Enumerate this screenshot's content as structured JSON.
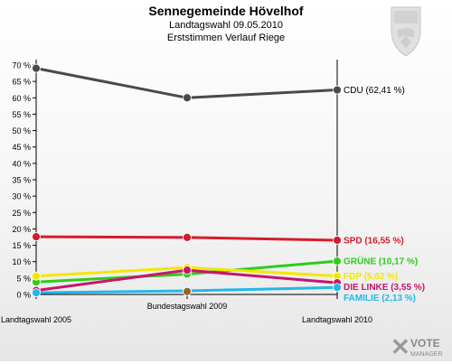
{
  "header": {
    "title": "Sennegemeinde Hövelhof",
    "subtitle1": "Landtagswahl 09.05.2010",
    "subtitle2": "Erststimmen Verlauf Riege"
  },
  "brand": {
    "line1": "VOTE",
    "line2": "MANAGER"
  },
  "chart_data": {
    "type": "line",
    "categories": [
      "Landtagswahl 2005",
      "Bundestagswahl 2009",
      "Landtagswahl 2010"
    ],
    "ylim": [
      0,
      70
    ],
    "yticks": [
      "0 %",
      "5 %",
      "10 %",
      "15 %",
      "20 %",
      "25 %",
      "30 %",
      "35 %",
      "40 %",
      "45 %",
      "50 %",
      "55 %",
      "60 %",
      "65 %",
      "70 %"
    ],
    "ytick_values": [
      0,
      5,
      10,
      15,
      20,
      25,
      30,
      35,
      40,
      45,
      50,
      55,
      60,
      65,
      70
    ],
    "grid": false,
    "series": [
      {
        "name": "CDU",
        "label": "CDU (62,41 %)",
        "color": "#4a4a4a",
        "label_color": "#000000",
        "values": [
          69.0,
          60.0,
          62.41
        ]
      },
      {
        "name": "SPD",
        "label": "SPD (16,55 %)",
        "color": "#d61c2b",
        "label_color": "#d61c2b",
        "values": [
          17.6,
          17.4,
          16.55
        ]
      },
      {
        "name": "GRÜNE",
        "label": "GRÜNE (10,17 %)",
        "color": "#2ecc1a",
        "label_color": "#2ecc1a",
        "values": [
          3.8,
          6.2,
          10.17
        ]
      },
      {
        "name": "FDP",
        "label": "FDP (5,62 %)",
        "color": "#f5e600",
        "label_color": "#f5e600",
        "values": [
          5.6,
          8.2,
          5.62
        ]
      },
      {
        "name": "DIE LINKE",
        "label": "DIE LINKE (3,55 %)",
        "color": "#c8156a",
        "label_color": "#c8156a",
        "values": [
          1.2,
          7.4,
          3.55
        ]
      },
      {
        "name": "FAMILIE",
        "label": "FAMILIE (2,13 %)",
        "color": "#22b8e8",
        "label_color": "#22b8e8",
        "values": [
          0.5,
          1.1,
          2.13
        ]
      },
      {
        "name": "Sonstige",
        "label": "",
        "color": "#8a6a2a",
        "label_color": "#8a6a2a",
        "values": [
          null,
          0.9,
          null
        ]
      }
    ]
  }
}
